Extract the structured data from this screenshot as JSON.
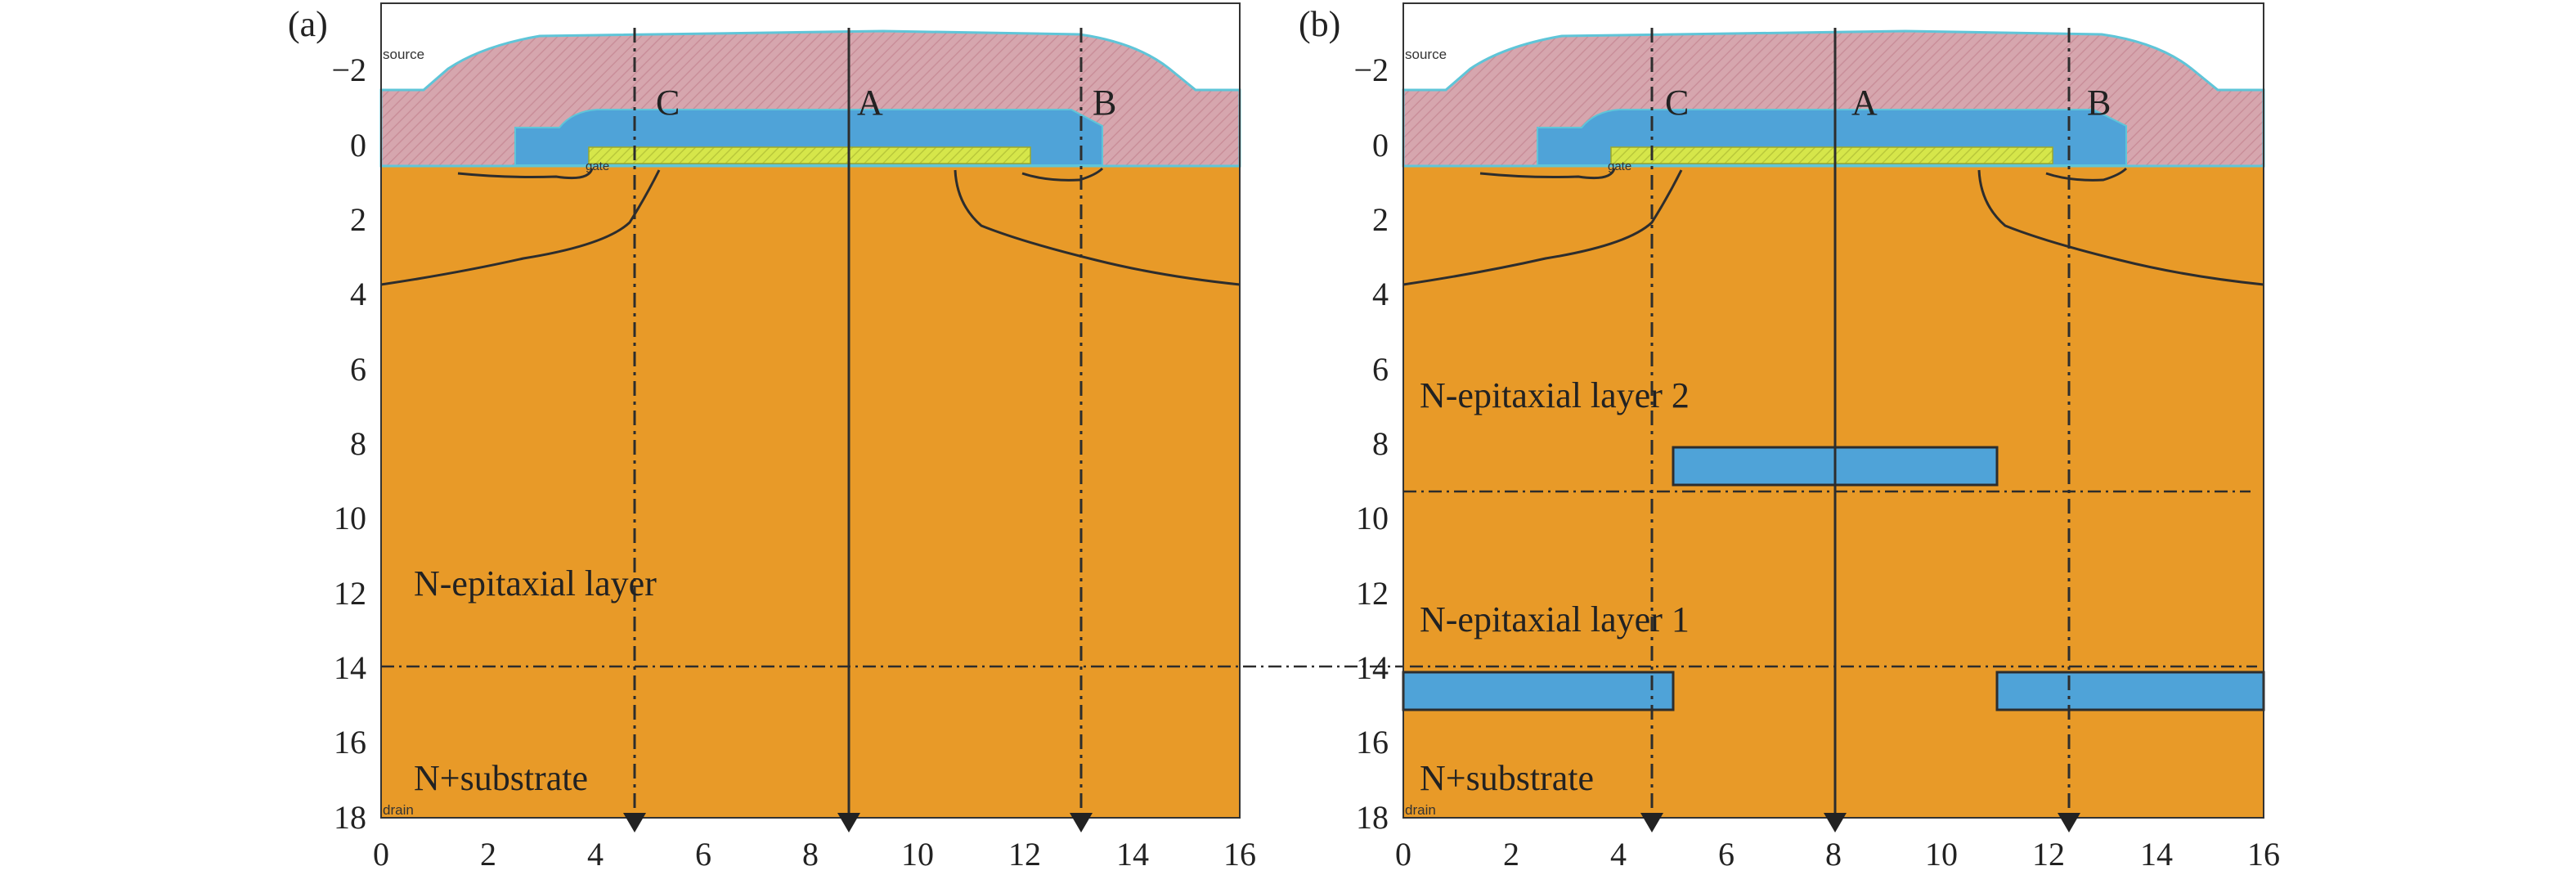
{
  "figure": {
    "colors": {
      "silicon": "#E89A28",
      "oxide_pink": "#D6A6AE",
      "oxide_blue": "#4FA3D8",
      "gate_yellow": "#D6E64A",
      "outline": "#2D2D2D",
      "edge_cyan": "#5FC5D8"
    },
    "panels": [
      {
        "id": "a",
        "label": "(a)",
        "source_label": "source",
        "gate_label": "gate",
        "drain_label": "drain",
        "x_ticks": [
          "0",
          "2",
          "4",
          "6",
          "8",
          "10",
          "12",
          "14",
          "16"
        ],
        "y_ticks": [
          "−2",
          "0",
          "2",
          "4",
          "6",
          "8",
          "10",
          "12",
          "14",
          "16",
          "18"
        ],
        "cut_lines": [
          {
            "letter": "C",
            "x_um": 4.7,
            "style": "dashdot"
          },
          {
            "letter": "A",
            "x_um": 8.7,
            "style": "solid"
          },
          {
            "letter": "B",
            "x_um": 13.1,
            "style": "dashdot"
          }
        ],
        "layer_texts": [
          "N-epitaxial layer",
          "N+substrate"
        ],
        "boundary_depths_um": [
          13.9
        ],
        "buried_blocks": []
      },
      {
        "id": "b",
        "label": "(b)",
        "source_label": "source",
        "gate_label": "gate",
        "drain_label": "drain",
        "x_ticks": [
          "0",
          "2",
          "4",
          "6",
          "8",
          "10",
          "12",
          "14",
          "16"
        ],
        "y_ticks": [
          "−2",
          "0",
          "2",
          "4",
          "6",
          "8",
          "10",
          "12",
          "14",
          "16",
          "18"
        ],
        "cut_lines": [
          {
            "letter": "C",
            "x_um": 4.6,
            "style": "dashdot"
          },
          {
            "letter": "A",
            "x_um": 8.0,
            "style": "solid"
          },
          {
            "letter": "B",
            "x_um": 12.4,
            "style": "dashdot"
          }
        ],
        "layer_texts": [
          "N-epitaxial layer 2",
          "N-epitaxial layer 1",
          "N+substrate"
        ],
        "boundary_depths_um": [
          9.2,
          13.9
        ],
        "buried_blocks": [
          {
            "x0_um": 5,
            "x1_um": 11,
            "y0_um": 8,
            "y1_um": 9
          },
          {
            "x0_um": 0,
            "x1_um": 5,
            "y0_um": 14,
            "y1_um": 15
          },
          {
            "x0_um": 11,
            "x1_um": 16,
            "y0_um": 14,
            "y1_um": 15
          }
        ]
      }
    ]
  }
}
